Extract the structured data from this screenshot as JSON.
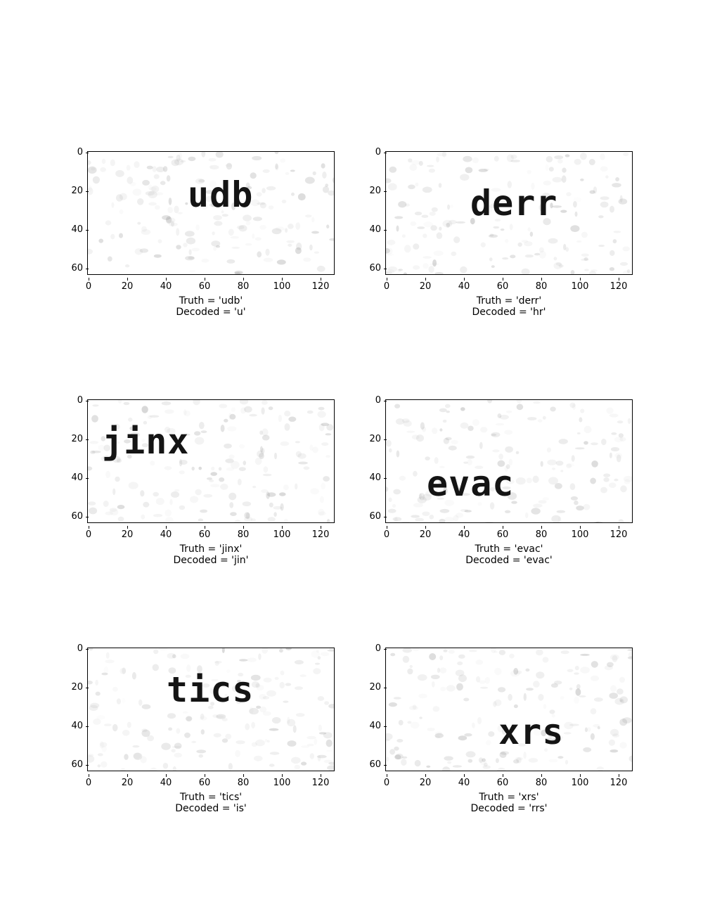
{
  "panels": [
    {
      "word": "udb",
      "truth": "Truth = 'udb'",
      "decoded": "Decoded = 'u'"
    },
    {
      "word": "derr",
      "truth": "Truth = 'derr'",
      "decoded": "Decoded = 'hr'"
    },
    {
      "word": "jinx",
      "truth": "Truth = 'jinx'",
      "decoded": "Decoded = 'jin'"
    },
    {
      "word": "evac",
      "truth": "Truth = 'evac'",
      "decoded": "Decoded = 'evac'"
    },
    {
      "word": "tics",
      "truth": "Truth = 'tics'",
      "decoded": "Decoded = 'is'"
    },
    {
      "word": "xrs",
      "truth": "Truth = 'xrs'",
      "decoded": "Decoded = 'rrs'"
    }
  ],
  "axes": {
    "x_ticks": [
      "0",
      "20",
      "40",
      "60",
      "80",
      "100",
      "120"
    ],
    "y_ticks": [
      "0",
      "20",
      "40",
      "60"
    ]
  }
}
